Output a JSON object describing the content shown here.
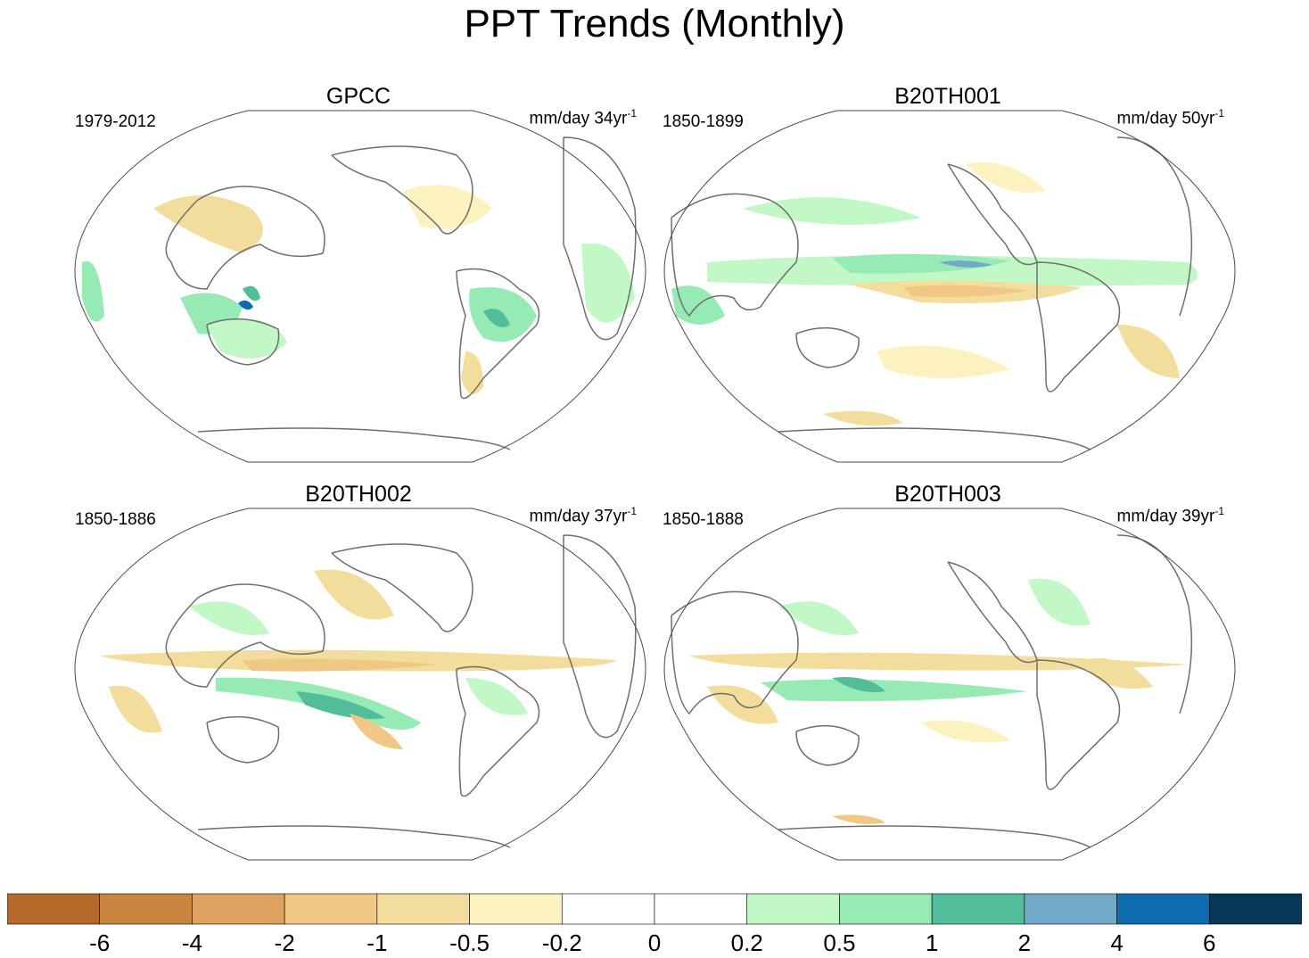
{
  "title": "PPT Trends (Monthly)",
  "panels": [
    {
      "name": "GPCC",
      "period": "1979-2012",
      "units": "mm/day 34yr",
      "units_sup": "-1"
    },
    {
      "name": "B20TH001",
      "period": "1850-1899",
      "units": "mm/day 50yr",
      "units_sup": "-1"
    },
    {
      "name": "B20TH002",
      "period": "1850-1886",
      "units": "mm/day 37yr",
      "units_sup": "-1"
    },
    {
      "name": "B20TH003",
      "period": "1850-1888",
      "units": "mm/day 39yr",
      "units_sup": "-1"
    }
  ],
  "colorbar": {
    "labels": [
      "-6",
      "-4",
      "-2",
      "-1",
      "-0.5",
      "-0.2",
      "0",
      "0.2",
      "0.5",
      "1",
      "2",
      "4",
      "6"
    ],
    "colors": [
      "#b5692b",
      "#c9843f",
      "#dea15f",
      "#f0c784",
      "#f2dd9c",
      "#fcf2bf",
      "#ffffff",
      "#ffffff",
      "#c2f7c6",
      "#96ebb5",
      "#52bd9b",
      "#72a9c8",
      "#0e6cae",
      "#073858"
    ]
  }
}
